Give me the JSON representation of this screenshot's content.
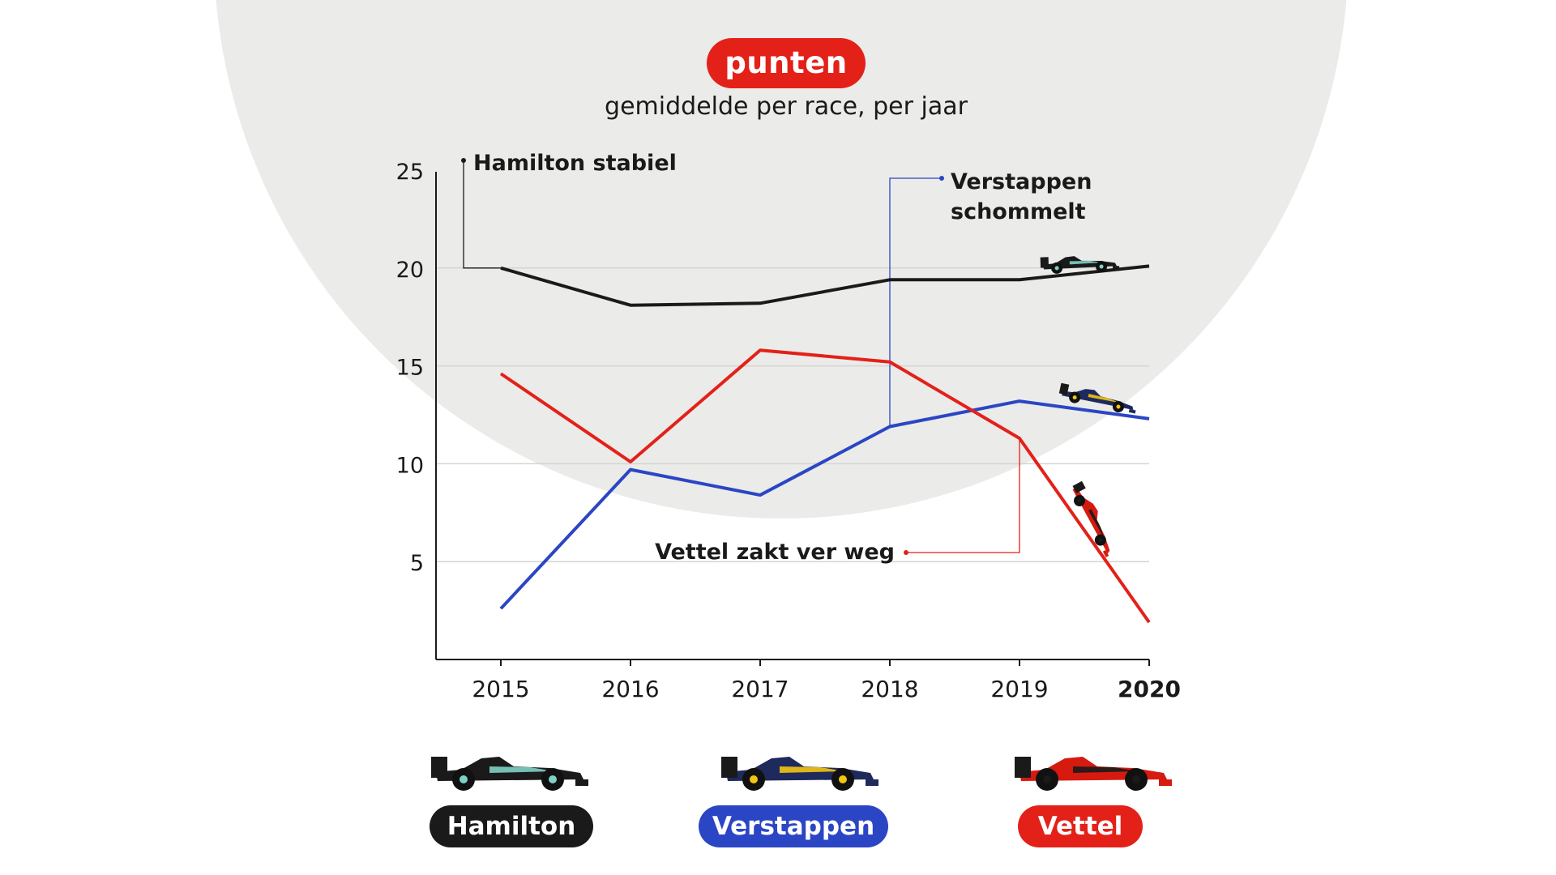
{
  "chart_data": {
    "type": "line",
    "title": "punten",
    "subtitle": "gemiddelde per race, per jaar",
    "categories": [
      "2015",
      "2016",
      "2017",
      "2018",
      "2019",
      "2020"
    ],
    "ylim": [
      0,
      25
    ],
    "yticks": [
      5,
      10,
      15,
      20,
      25
    ],
    "grid": true,
    "series": [
      {
        "name": "Hamilton",
        "color": "#1a1a1a",
        "values": [
          20.0,
          18.1,
          18.2,
          19.4,
          19.4,
          20.1
        ]
      },
      {
        "name": "Verstappen",
        "color": "#2b46c4",
        "values": [
          2.6,
          9.7,
          8.4,
          11.9,
          13.2,
          12.3
        ]
      },
      {
        "name": "Vettel",
        "color": "#e32119",
        "values": [
          14.6,
          10.1,
          15.8,
          15.2,
          11.3,
          1.9
        ]
      }
    ],
    "annotations": [
      {
        "text": "Hamilton stabiel",
        "series": "Hamilton",
        "x": "2015",
        "y": 20.0
      },
      {
        "text": "Verstappen\nschommelt",
        "series": "Verstappen",
        "x": "2018",
        "y": 11.9
      },
      {
        "text": "Vettel zakt ver weg",
        "series": "Vettel",
        "x": "2019",
        "y": 11.3
      }
    ]
  },
  "colors": {
    "hamilton": "#1a1a1a",
    "verstappen": "#2b46c4",
    "vettel": "#e32119",
    "background_circle": "#ebebe9",
    "grid": "#d4d4d0"
  },
  "legend": [
    {
      "label": "Hamilton",
      "icon": "mercedes-car-icon"
    },
    {
      "label": "Verstappen",
      "icon": "redbull-car-icon"
    },
    {
      "label": "Vettel",
      "icon": "ferrari-car-icon"
    }
  ]
}
